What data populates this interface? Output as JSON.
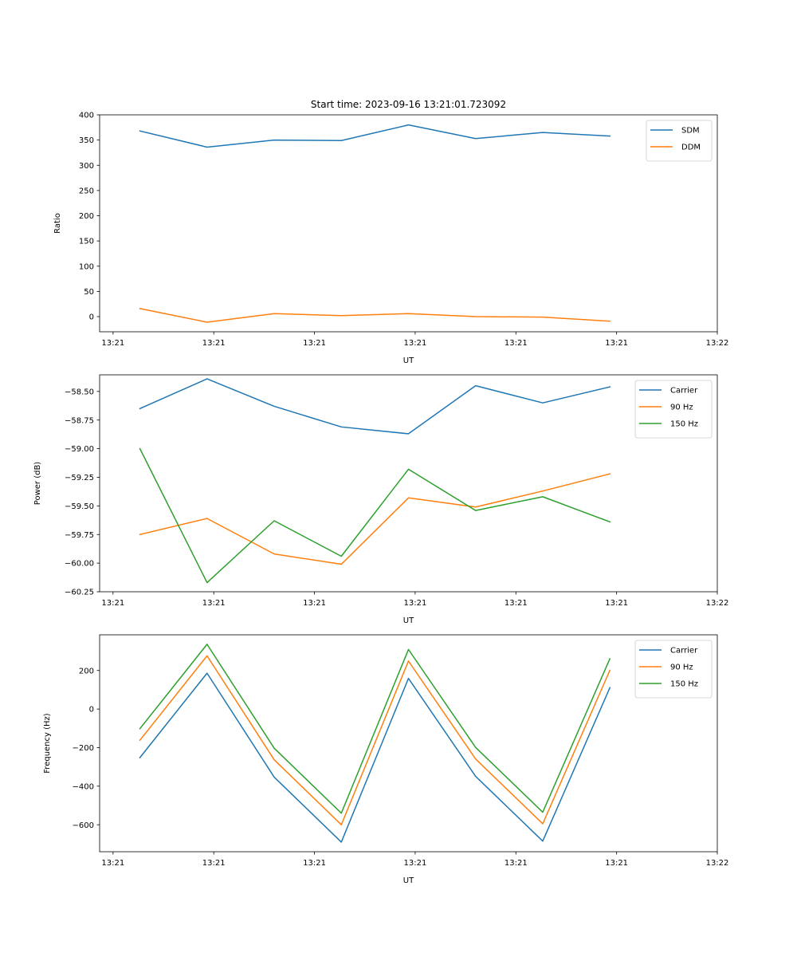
{
  "chart_data": [
    {
      "type": "line",
      "title": "Start time: 2023-09-16 13:21:01.723092",
      "xlabel": "UT",
      "ylabel": "Ratio",
      "x": [
        1,
        2,
        3,
        4,
        5,
        6,
        7,
        8
      ],
      "xlim": [
        0.4,
        9.6
      ],
      "xticks": [
        0.6,
        2.1,
        3.6,
        5.1,
        6.6,
        8.1,
        9.6
      ],
      "xtick_labels": [
        "13:21",
        "13:21",
        "13:21",
        "13:21",
        "13:21",
        "13:21",
        "13:22"
      ],
      "ylim": [
        -30,
        400
      ],
      "yticks": [
        0,
        50,
        100,
        150,
        200,
        250,
        300,
        350,
        400
      ],
      "ytick_labels": [
        "0",
        "50",
        "100",
        "150",
        "200",
        "250",
        "300",
        "350",
        "400"
      ],
      "legend": "top-right",
      "series": [
        {
          "name": "SDM",
          "color": "#1f77b4",
          "values": [
            368,
            336,
            350,
            349,
            380,
            353,
            365,
            358
          ]
        },
        {
          "name": "DDM",
          "color": "#ff7f0e",
          "values": [
            16,
            -11,
            6,
            2,
            6,
            0,
            -1,
            -9
          ]
        }
      ]
    },
    {
      "type": "line",
      "xlabel": "UT",
      "ylabel": "Power (dB)",
      "x": [
        1,
        2,
        3,
        4,
        5,
        6,
        7,
        8
      ],
      "xlim": [
        0.4,
        9.6
      ],
      "xticks": [
        0.6,
        2.1,
        3.6,
        5.1,
        6.6,
        8.1,
        9.6
      ],
      "xtick_labels": [
        "13:21",
        "13:21",
        "13:21",
        "13:21",
        "13:21",
        "13:21",
        "13:22"
      ],
      "ylim": [
        -60.25,
        -58.355
      ],
      "yticks": [
        -60.25,
        -60.0,
        -59.75,
        -59.5,
        -59.25,
        -59.0,
        -58.75,
        -58.5
      ],
      "ytick_labels": [
        "−60.25",
        "−60.00",
        "−59.75",
        "−59.50",
        "−59.25",
        "−59.00",
        "−58.75",
        "−58.50"
      ],
      "legend": "top-right",
      "series": [
        {
          "name": "Carrier",
          "color": "#1f77b4",
          "values": [
            -58.65,
            -58.39,
            -58.63,
            -58.81,
            -58.87,
            -58.45,
            -58.6,
            -58.46
          ]
        },
        {
          "name": "90 Hz",
          "color": "#ff7f0e",
          "values": [
            -59.75,
            -59.61,
            -59.92,
            -60.01,
            -59.43,
            -59.51,
            -59.37,
            -59.22
          ]
        },
        {
          "name": "150 Hz",
          "color": "#2ca02c",
          "values": [
            -59.0,
            -60.17,
            -59.63,
            -59.94,
            -59.18,
            -59.54,
            -59.42,
            -59.64
          ]
        }
      ]
    },
    {
      "type": "line",
      "xlabel": "UT",
      "ylabel": "Frequency (Hz)",
      "x": [
        1,
        2,
        3,
        4,
        5,
        6,
        7,
        8
      ],
      "xlim": [
        0.4,
        9.6
      ],
      "xticks": [
        0.6,
        2.1,
        3.6,
        5.1,
        6.6,
        8.1,
        9.6
      ],
      "xtick_labels": [
        "13:21",
        "13:21",
        "13:21",
        "13:21",
        "13:21",
        "13:21",
        "13:22"
      ],
      "ylim": [
        -740,
        385
      ],
      "yticks": [
        -600,
        -400,
        -200,
        0,
        200
      ],
      "ytick_labels": [
        "−600",
        "−400",
        "−200",
        "0",
        "200"
      ],
      "legend": "top-right",
      "series": [
        {
          "name": "Carrier",
          "color": "#1f77b4",
          "values": [
            -252,
            186,
            -353,
            -690,
            159,
            -349,
            -685,
            111
          ]
        },
        {
          "name": "90 Hz",
          "color": "#ff7f0e",
          "values": [
            -162,
            276,
            -263,
            -600,
            249,
            -259,
            -595,
            201
          ]
        },
        {
          "name": "150 Hz",
          "color": "#2ca02c",
          "values": [
            -102,
            336,
            -203,
            -540,
            309,
            -199,
            -535,
            261
          ]
        }
      ]
    }
  ]
}
